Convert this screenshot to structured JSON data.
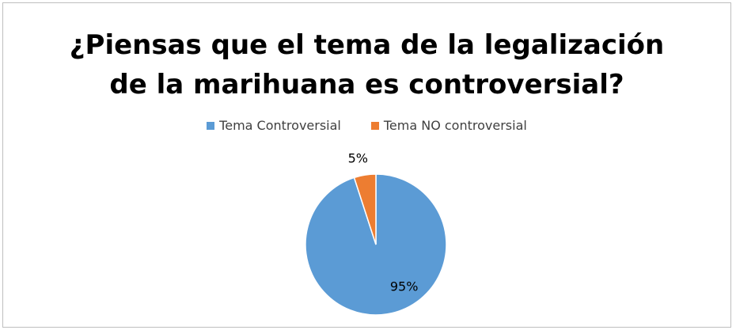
{
  "chart_data": {
    "type": "pie",
    "title_lines": [
      "¿Piensas que el tema de la legalización",
      "de la marihuana es controversial?"
    ],
    "legend_placement": "top",
    "categories": [
      "Tema Controversial",
      "Tema NO controversial"
    ],
    "values": [
      95,
      5
    ],
    "data_labels": [
      "95%",
      "5%"
    ],
    "colors": [
      "#5b9bd5",
      "#ed7d31"
    ]
  }
}
